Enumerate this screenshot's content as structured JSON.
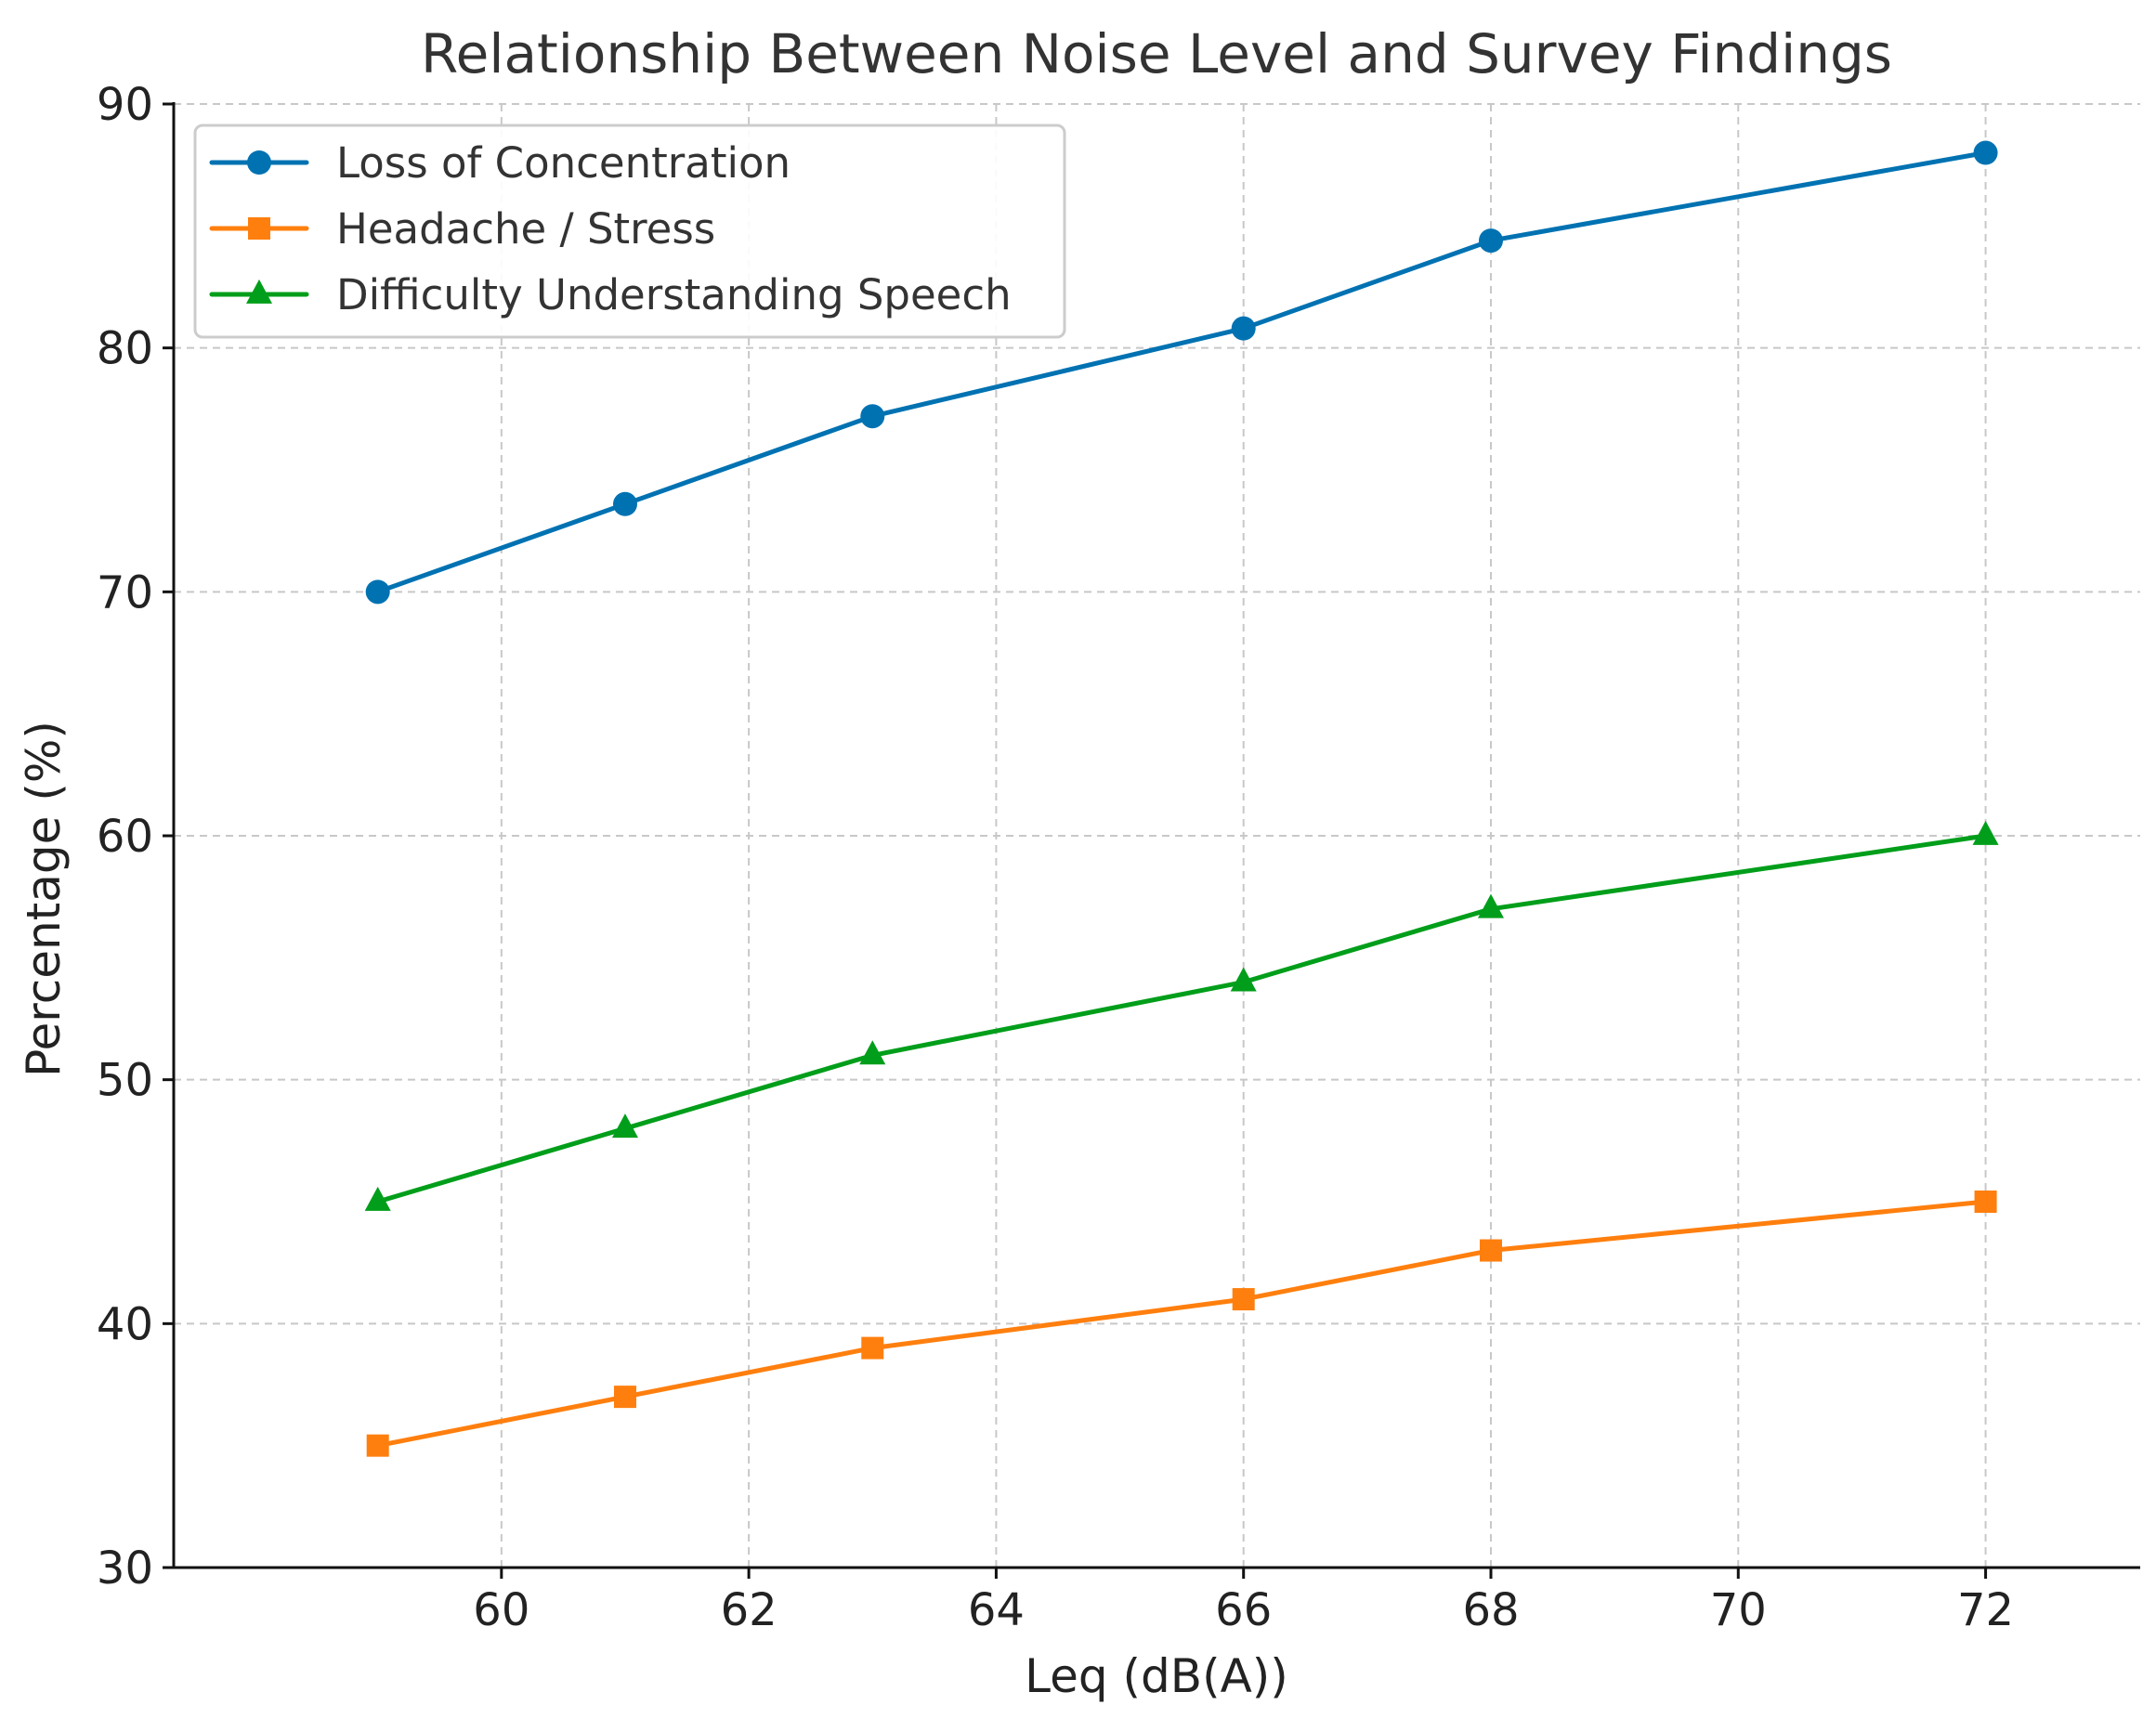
{
  "chart_data": {
    "type": "line",
    "title": "Relationship Between Noise Level and Survey Findings",
    "xlabel": "Leq (dB(A))",
    "ylabel": "Percentage (%)",
    "x": [
      59,
      61,
      63,
      66,
      68,
      72
    ],
    "xlim": [
      57.35,
      73.25
    ],
    "ylim": [
      30,
      90
    ],
    "xticks": [
      60,
      62,
      64,
      66,
      68,
      70,
      72
    ],
    "yticks": [
      30,
      40,
      50,
      60,
      70,
      80,
      90
    ],
    "xtick_labels": [
      "60",
      "62",
      "64",
      "66",
      "68",
      "70",
      "72"
    ],
    "ytick_labels": [
      "30",
      "40",
      "50",
      "60",
      "70",
      "80",
      "90"
    ],
    "grid": true,
    "legend_position": "top-left",
    "series": [
      {
        "name": "Loss of Concentration",
        "color": "#0072b2",
        "marker": "circle",
        "values": [
          70.0,
          73.6,
          77.2,
          80.8,
          84.4,
          88.0
        ]
      },
      {
        "name": "Headache / Stress",
        "color": "#ff7f0e",
        "marker": "square",
        "values": [
          35,
          37,
          39,
          41,
          43,
          45
        ]
      },
      {
        "name": "Difficulty Understanding Speech",
        "color": "#009e1a",
        "marker": "triangle",
        "values": [
          45,
          48,
          51,
          54,
          57,
          60
        ]
      }
    ]
  }
}
